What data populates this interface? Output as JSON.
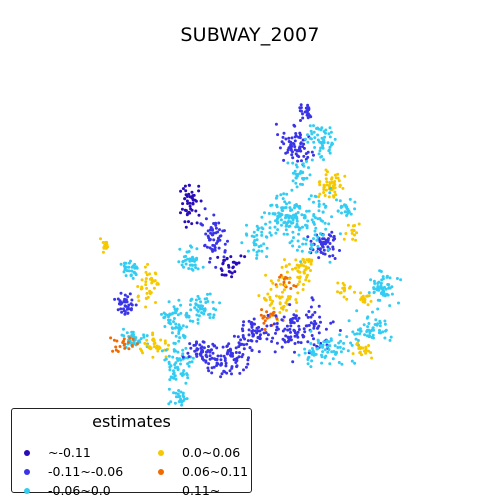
{
  "title": "SUBWAY_2007",
  "legend": {
    "title": "estimates",
    "items": [
      {
        "label": "~-0.11",
        "color": "#2a0cb8"
      },
      {
        "label": "-0.11~-0.06",
        "color": "#3a34e6"
      },
      {
        "label": "-0.06~0.0",
        "color": "#33ccf2"
      },
      {
        "label": "0.0~0.06",
        "color": "#f5c800"
      },
      {
        "label": "0.06~0.11",
        "color": "#f06a00"
      },
      {
        "label": "0.11~",
        "color": "#c02000"
      }
    ]
  }
}
